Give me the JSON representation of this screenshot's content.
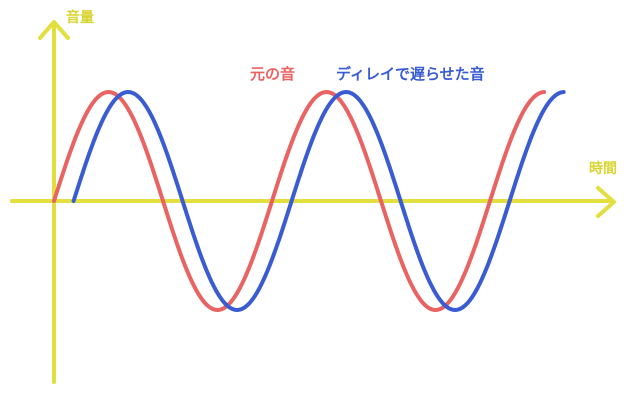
{
  "labels": {
    "y_axis": "音量",
    "x_axis": "時間",
    "original": "元の音",
    "delayed": "ディレイで遅らせた音"
  },
  "colors": {
    "axis": "#e2df3f",
    "original": "#e96363",
    "delayed": "#3a5cd2"
  },
  "chart_data": {
    "type": "line",
    "title": "",
    "xlabel": "時間",
    "ylabel": "音量",
    "series": [
      {
        "name": "元の音",
        "color": "#e96363",
        "amplitude": 1,
        "cycles": 2.25,
        "phase_offset_cycles": 0
      },
      {
        "name": "ディレイで遅らせた音",
        "color": "#3a5cd2",
        "amplitude": 1,
        "cycles": 2.25,
        "phase_offset_cycles": 0.09
      }
    ]
  }
}
